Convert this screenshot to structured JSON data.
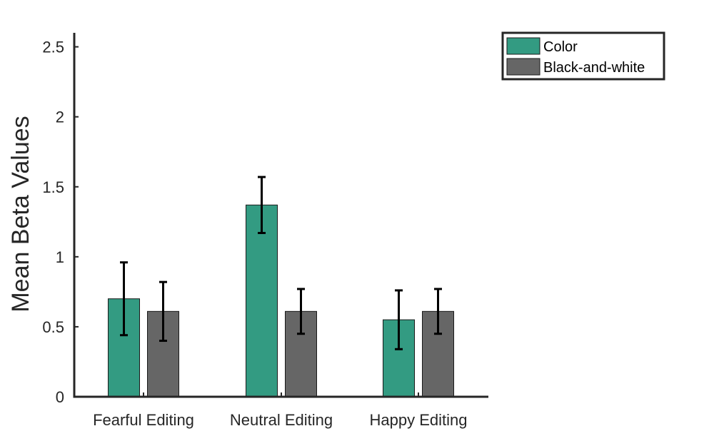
{
  "chart_data": {
    "type": "bar",
    "categories": [
      "Fearful Editing",
      "Neutral Editing",
      "Happy Editing"
    ],
    "series": [
      {
        "name": "Color",
        "color": "#339b82",
        "values": [
          0.7,
          1.37,
          0.55
        ],
        "error": [
          0.26,
          0.2,
          0.21
        ]
      },
      {
        "name": "Black-and-white",
        "color": "#666666",
        "values": [
          0.61,
          0.61,
          0.61
        ],
        "error": [
          0.21,
          0.16,
          0.16
        ]
      }
    ],
    "xlabel": "",
    "ylabel": "Mean Beta Values",
    "ylim": [
      0,
      2.6
    ],
    "yticks": [
      0,
      0.5,
      1,
      1.5,
      2,
      2.5
    ],
    "ytick_labels": [
      "0",
      "0.5",
      "1",
      "1.5",
      "2",
      "2.5"
    ],
    "grid": false,
    "legend_position": "top-right"
  }
}
